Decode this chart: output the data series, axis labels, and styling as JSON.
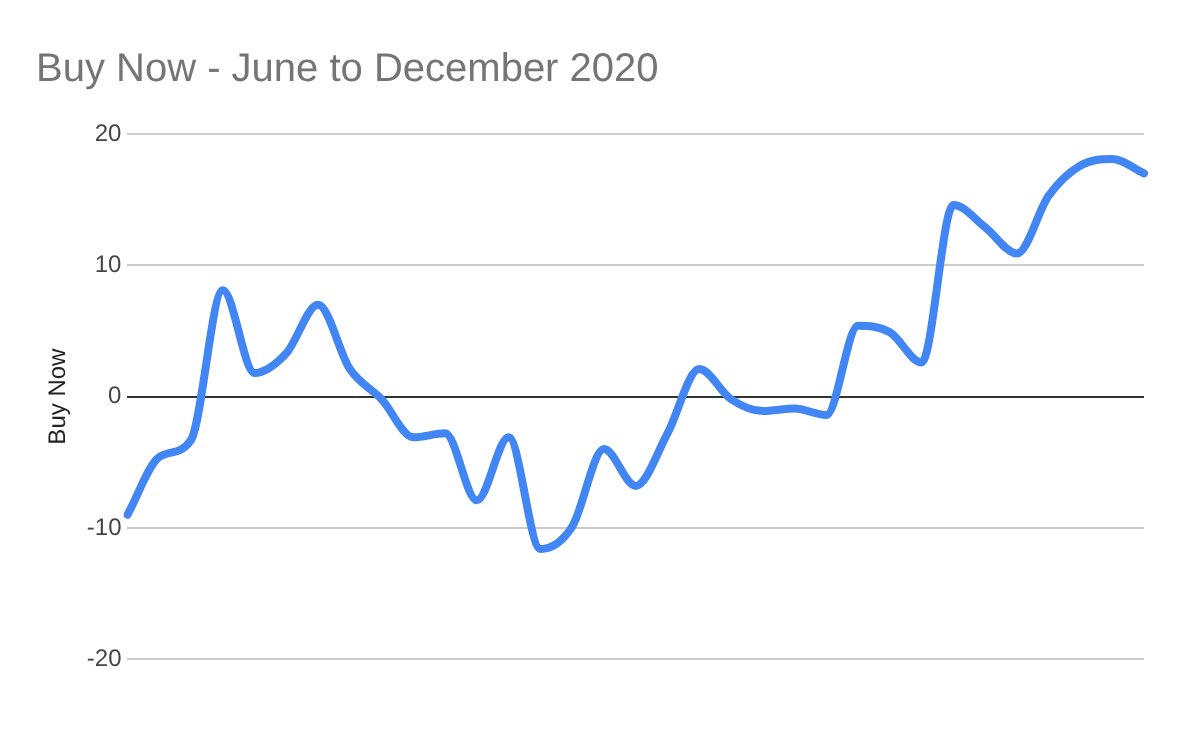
{
  "chart_data": {
    "type": "line",
    "title": "Buy Now - June to December 2020",
    "ylabel": "Buy Now",
    "categories": [
      null,
      null,
      null,
      null,
      null,
      null,
      null,
      null,
      null,
      null,
      null,
      null,
      null,
      null,
      null,
      null,
      null,
      null,
      null,
      null,
      null,
      null,
      null,
      null,
      null,
      null,
      null,
      null,
      null,
      null,
      null,
      null,
      null
    ],
    "series": [
      {
        "color": "#4285f4",
        "values": [
          -9,
          -4.6,
          -3.3,
          8.1,
          1.8,
          3.3,
          7,
          2.1,
          -0.2,
          -3.1,
          -2.8,
          -7.9,
          -3.1,
          -11.6,
          -9.9,
          -4,
          -6.8,
          -2.8,
          2.1,
          -0.2,
          -1.1,
          -0.9,
          -1.4,
          5.4,
          4.9,
          2.6,
          14.6,
          12.9,
          10.9,
          15.3,
          17.6,
          18.1,
          17
        ]
      }
    ],
    "ylim": [
      -20,
      20
    ],
    "yticks": [
      -20,
      -10,
      0,
      10,
      20
    ],
    "grid": "y",
    "legend": false,
    "marker": "none",
    "line_style": "solid"
  }
}
